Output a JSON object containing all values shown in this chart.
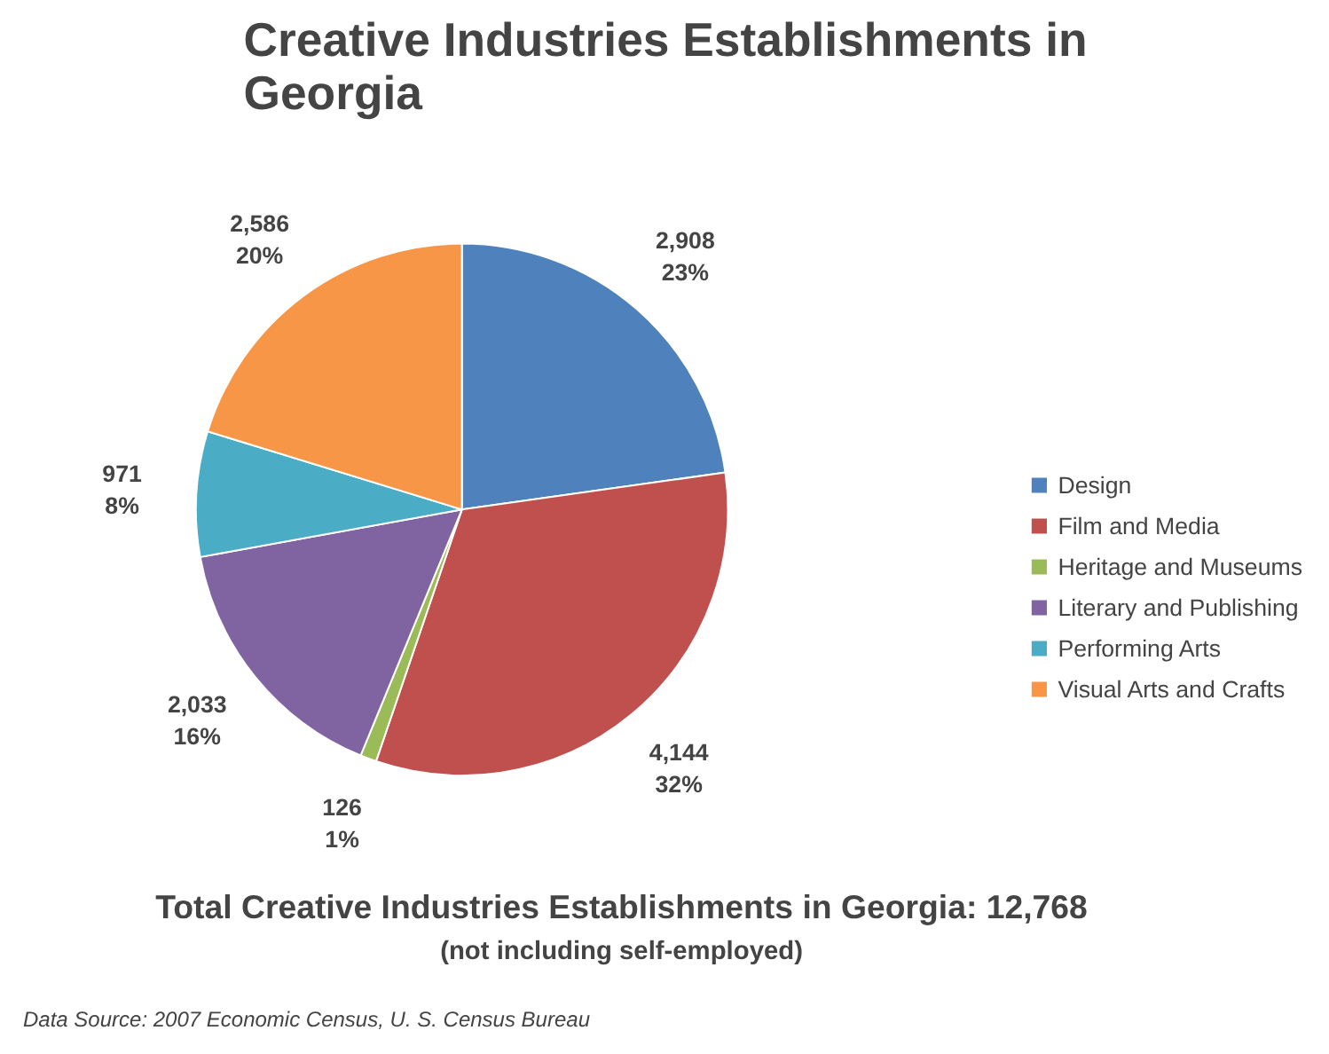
{
  "chart_data": {
    "type": "pie",
    "title": "Creative Industries Establishments in\nGeorgia",
    "categories": [
      "Design",
      "Film and Media",
      "Heritage and Museums",
      "Literary and Publishing",
      "Performing Arts",
      "Visual Arts and Crafts"
    ],
    "values": [
      2908,
      4144,
      126,
      2033,
      971,
      2586
    ],
    "colors": [
      "#4f81bd",
      "#c0504d",
      "#9bbb59",
      "#8064a2",
      "#4bacc6",
      "#f79646"
    ],
    "value_labels": [
      "2,908\n23%",
      "4,144\n32%",
      "126\n1%",
      "2,033\n16%",
      "971\n8%",
      "2,586\n20%"
    ],
    "legend": "right",
    "annotations": [
      "Total Creative Industries Establishments in Georgia: 12,768",
      "(not including self-employed)",
      "Data Source: 2007 Economic Census, U. S. Census Bureau"
    ]
  }
}
